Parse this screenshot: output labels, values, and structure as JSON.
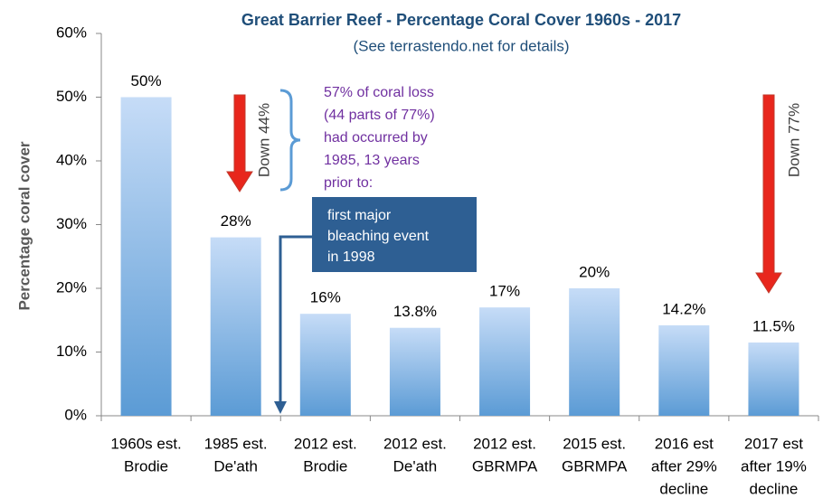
{
  "chart_data": {
    "type": "bar",
    "title": "Great Barrier Reef - Percentage Coral Cover 1960s - 2017",
    "subtitle": "(See terrastendo.net for details)",
    "y_label": "Percentage coral cover",
    "categories": [
      [
        "1960s est.",
        "Brodie"
      ],
      [
        "1985 est.",
        "De'ath"
      ],
      [
        "2012 est.",
        "Brodie"
      ],
      [
        "2012 est.",
        "De'ath"
      ],
      [
        "2012 est.",
        "GBRMPA"
      ],
      [
        "2015 est.",
        "GBRMPA"
      ],
      [
        "2016 est",
        "after 29%",
        "decline"
      ],
      [
        "2017 est",
        "after 19%",
        "decline"
      ]
    ],
    "values": [
      50,
      28,
      16,
      13.8,
      17,
      20,
      14.2,
      11.5
    ],
    "value_labels": [
      "50%",
      "28%",
      "16%",
      "13.8%",
      "17%",
      "20%",
      "14.2%",
      "11.5%"
    ],
    "ylim": [
      0,
      60
    ],
    "yticks": [
      {
        "value": 0,
        "label": "0%"
      },
      {
        "value": 10,
        "label": "10%"
      },
      {
        "value": 20,
        "label": "20%"
      },
      {
        "value": 30,
        "label": "30%"
      },
      {
        "value": 40,
        "label": "40%"
      },
      {
        "value": 50,
        "label": "50%"
      },
      {
        "value": 60,
        "label": "60%"
      }
    ],
    "annotations": {
      "down_44": "Down 44%",
      "down_77": "Down 77%",
      "loss_note": [
        "57% of coral loss",
        "(44 parts of 77%)",
        "had occurred by",
        "1985, 13 years",
        "prior to:"
      ],
      "bleaching": [
        "first major",
        "bleaching event",
        "in 1998"
      ]
    }
  }
}
